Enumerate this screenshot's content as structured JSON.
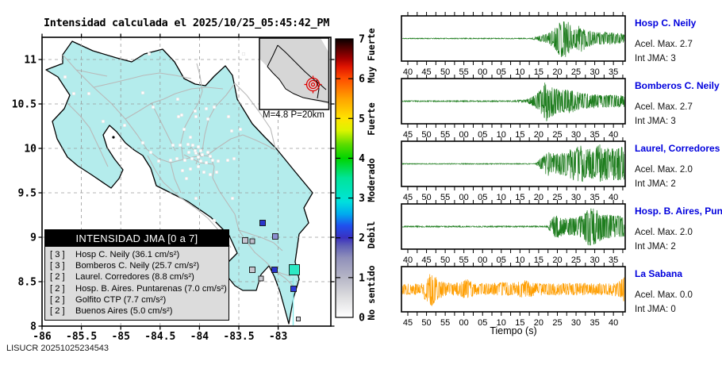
{
  "title": "Intensidad calculada el 2025/10/25_05:45:42_PM",
  "watermark": "LISUCR 20251025234543",
  "map": {
    "x_ticks": [
      "-86",
      "-85.5",
      "-85",
      "-84.5",
      "-84",
      "-83.5",
      "-83"
    ],
    "y_ticks": [
      "8",
      "8.5",
      "9",
      "9.5",
      "10",
      "10.5",
      "11"
    ],
    "inset_caption": "M=4.8 P=20km",
    "legend": {
      "title": "INTENSIDAD JMA [0 a 7]",
      "items": [
        {
          "bracket": "[ 3 ]",
          "label": "Hosp C. Neily (36.1 cm/s²)"
        },
        {
          "bracket": "[ 3 ]",
          "label": "Bomberos C. Neily (25.7 cm/s²)"
        },
        {
          "bracket": "[ 2 ]",
          "label": "Laurel. Corredores (8.8 cm/s²)"
        },
        {
          "bracket": "[ 2 ]",
          "label": "Hosp. B. Aires. Puntarenas (7.0 cm/s²)"
        },
        {
          "bracket": "[ 2 ]",
          "label": "Golfito CTP (7.7 cm/s²)"
        },
        {
          "bracket": "[ 2 ]",
          "label": "Buenos Aires (5.0 cm/s²)"
        }
      ]
    },
    "intensity_markers": [
      {
        "x": 331,
        "y": 281,
        "size": 7,
        "color": "#2a35cc"
      },
      {
        "x": 347,
        "y": 298,
        "size": 7,
        "color": "#8a8ed0"
      },
      {
        "x": 309,
        "y": 303,
        "size": 7,
        "color": "#c6c6d2"
      },
      {
        "x": 318,
        "y": 304,
        "size": 6,
        "color": "#bfbfcc"
      },
      {
        "x": 318,
        "y": 340,
        "size": 7,
        "color": "#c6c6ce"
      },
      {
        "x": 346,
        "y": 340,
        "size": 7,
        "color": "#2a35cc"
      },
      {
        "x": 329,
        "y": 351,
        "size": 6,
        "color": "#c8c8d0"
      },
      {
        "x": 371,
        "y": 340,
        "size": 13,
        "color": "#2de8c4"
      },
      {
        "x": 370,
        "y": 364,
        "size": 7,
        "color": "#2d3bd8"
      },
      {
        "x": 376,
        "y": 402,
        "size": 5,
        "color": "#d2d2d8"
      }
    ],
    "white_stations": [
      [
        82,
        97
      ],
      [
        93,
        118
      ],
      [
        112,
        118
      ],
      [
        130,
        153
      ],
      [
        157,
        158
      ],
      [
        180,
        117
      ],
      [
        188,
        68
      ],
      [
        307,
        68
      ],
      [
        224,
        125
      ],
      [
        225,
        147
      ],
      [
        247,
        147
      ],
      [
        260,
        137
      ],
      [
        288,
        147
      ],
      [
        303,
        163
      ],
      [
        292,
        165
      ],
      [
        193,
        135
      ],
      [
        229,
        145
      ],
      [
        232,
        163
      ],
      [
        240,
        173
      ],
      [
        218,
        183
      ],
      [
        227,
        183
      ],
      [
        237,
        182
      ],
      [
        243,
        183
      ],
      [
        250,
        185
      ],
      [
        253,
        190
      ],
      [
        238,
        192
      ],
      [
        247,
        193
      ],
      [
        255,
        195
      ],
      [
        262,
        192
      ],
      [
        265,
        197
      ],
      [
        250,
        198
      ],
      [
        242,
        200
      ],
      [
        233,
        202
      ],
      [
        223,
        200
      ],
      [
        215,
        202
      ],
      [
        253,
        203
      ],
      [
        260,
        205
      ],
      [
        268,
        202
      ],
      [
        275,
        203
      ],
      [
        287,
        202
      ],
      [
        295,
        200
      ],
      [
        250,
        210
      ],
      [
        240,
        213
      ],
      [
        230,
        215
      ],
      [
        257,
        217
      ],
      [
        265,
        220
      ],
      [
        273,
        217
      ],
      [
        200,
        203
      ],
      [
        190,
        192
      ],
      [
        180,
        180
      ],
      [
        293,
        250
      ],
      [
        247,
        250
      ],
      [
        270,
        278
      ],
      [
        262,
        150
      ],
      [
        270,
        135
      ],
      [
        246,
        140
      ],
      [
        235,
        225
      ],
      [
        246,
        190
      ]
    ]
  },
  "colorbar": {
    "numbers": [
      "0",
      "1",
      "2",
      "3",
      "4",
      "5",
      "6",
      "7"
    ],
    "labels": [
      {
        "text": "Muy Fuerte",
        "y": 70
      },
      {
        "text": "Fuerte",
        "y": 150
      },
      {
        "text": "Moderado",
        "y": 227
      },
      {
        "text": "Debil",
        "y": 296
      },
      {
        "text": "No sentido",
        "y": 369
      }
    ]
  },
  "waveforms": {
    "xlabel": "Tiempo (s)",
    "panels": [
      {
        "station": "Hosp C. Neily",
        "acel": "Acel. Max. 2.7",
        "jma": "Int JMA: 3",
        "color": "#1e7d1e",
        "seed": 11,
        "ticks": [
          "40",
          "45",
          "50",
          "55",
          "00",
          "05",
          "10",
          "15",
          "20",
          "25",
          "30",
          "35"
        ],
        "env": [
          [
            0,
            0.02
          ],
          [
            0.58,
            0.02
          ],
          [
            0.615,
            0.12
          ],
          [
            0.655,
            0.25
          ],
          [
            0.69,
            0.55
          ],
          [
            0.72,
            1.0
          ],
          [
            0.745,
            0.85
          ],
          [
            0.77,
            0.45
          ],
          [
            0.8,
            0.7
          ],
          [
            0.83,
            0.45
          ],
          [
            0.87,
            0.3
          ],
          [
            0.92,
            0.32
          ],
          [
            1,
            0.22
          ]
        ]
      },
      {
        "station": "Bomberos C. Neily",
        "acel": "Acel. Max. 2.7",
        "jma": "Int JMA: 3",
        "color": "#1e7d1e",
        "seed": 23,
        "ticks": [
          "45",
          "50",
          "55",
          "00",
          "05",
          "10",
          "15",
          "20",
          "25",
          "30",
          "35",
          "40"
        ],
        "env": [
          [
            0,
            0.025
          ],
          [
            0.5,
            0.03
          ],
          [
            0.56,
            0.08
          ],
          [
            0.6,
            0.3
          ],
          [
            0.625,
            0.6
          ],
          [
            0.645,
            1.0
          ],
          [
            0.67,
            0.8
          ],
          [
            0.7,
            0.55
          ],
          [
            0.75,
            0.6
          ],
          [
            0.79,
            0.45
          ],
          [
            0.84,
            0.35
          ],
          [
            0.9,
            0.3
          ],
          [
            1,
            0.3
          ]
        ]
      },
      {
        "station": "Laurel, Corredores",
        "acel": "Acel. Max. 2.0",
        "jma": "Int JMA: 2",
        "color": "#1e7d1e",
        "seed": 37,
        "ticks": [
          "45",
          "50",
          "55",
          "00",
          "05",
          "10",
          "15",
          "20",
          "25",
          "30",
          "35",
          "40"
        ],
        "env": [
          [
            0,
            0.02
          ],
          [
            0.6,
            0.02
          ],
          [
            0.625,
            0.3
          ],
          [
            0.655,
            0.6
          ],
          [
            0.69,
            0.5
          ],
          [
            0.73,
            0.55
          ],
          [
            0.77,
            0.8
          ],
          [
            0.81,
            0.9
          ],
          [
            0.85,
            0.7
          ],
          [
            0.89,
            0.95
          ],
          [
            0.93,
            0.75
          ],
          [
            1,
            0.85
          ]
        ]
      },
      {
        "station": "Hosp. B. Aires, Puntare",
        "acel": "Acel. Max. 2.0",
        "jma": "Int JMA: 2",
        "color": "#1e7d1e",
        "seed": 51,
        "ticks": [
          "40",
          "45",
          "50",
          "55",
          "00",
          "05",
          "10",
          "15",
          "20",
          "25",
          "30",
          "35"
        ],
        "env": [
          [
            0,
            0.03
          ],
          [
            0.655,
            0.03
          ],
          [
            0.675,
            0.5
          ],
          [
            0.7,
            0.55
          ],
          [
            0.73,
            0.4
          ],
          [
            0.77,
            0.45
          ],
          [
            0.8,
            0.5
          ],
          [
            0.84,
            1.0
          ],
          [
            0.87,
            0.85
          ],
          [
            0.91,
            0.6
          ],
          [
            0.95,
            0.55
          ],
          [
            1,
            0.5
          ]
        ]
      },
      {
        "station": "La Sabana",
        "acel": "Acel. Max. 0.0",
        "jma": "Int JMA: 0",
        "color": "#ff9e00",
        "seed": 77,
        "ticks": [
          "45",
          "50",
          "55",
          "00",
          "05",
          "10",
          "15",
          "20",
          "25",
          "30",
          "35",
          "40"
        ],
        "env": [
          [
            0,
            0.25
          ],
          [
            0.08,
            0.3
          ],
          [
            0.11,
            0.6
          ],
          [
            0.135,
            0.85
          ],
          [
            0.16,
            0.5
          ],
          [
            0.2,
            0.3
          ],
          [
            0.26,
            0.35
          ],
          [
            0.29,
            0.5
          ],
          [
            0.33,
            0.3
          ],
          [
            0.4,
            0.28
          ],
          [
            0.45,
            0.35
          ],
          [
            0.5,
            0.3
          ],
          [
            0.55,
            0.45
          ],
          [
            0.6,
            0.3
          ],
          [
            0.7,
            0.28
          ],
          [
            0.8,
            0.3
          ],
          [
            0.9,
            0.28
          ],
          [
            0.97,
            0.35
          ],
          [
            1,
            0.6
          ]
        ]
      }
    ]
  },
  "chart_data": {
    "type": "line",
    "title": "Intensidad calculada el 2025/10/25_05:45:42_PM",
    "event": {
      "magnitude": 4.8,
      "depth_km": 20,
      "datetime": "2025/10/25 05:45:42 PM"
    },
    "intensity_scale": {
      "min": 0,
      "max": 7,
      "bands": [
        {
          "label": "No sentido",
          "range": [
            0,
            1
          ]
        },
        {
          "label": "Debil",
          "range": [
            1,
            3
          ]
        },
        {
          "label": "Moderado",
          "range": [
            3,
            4
          ]
        },
        {
          "label": "Fuerte",
          "range": [
            4,
            6
          ]
        },
        {
          "label": "Muy Fuerte",
          "range": [
            6,
            7
          ]
        }
      ]
    },
    "map_axes": {
      "xlim": [
        -86,
        -82.3
      ],
      "ylim": [
        8,
        11.25
      ],
      "x_ticks": [
        -86,
        -85.5,
        -85,
        -84.5,
        -84,
        -83.5,
        -83
      ],
      "y_ticks": [
        8,
        8.5,
        9,
        9.5,
        10,
        10.5,
        11
      ],
      "grid": true
    },
    "station_intensities": [
      {
        "station": "Hosp C. Neily",
        "jma": 3,
        "accel_cm_s2": 36.1
      },
      {
        "station": "Bomberos C. Neily",
        "jma": 3,
        "accel_cm_s2": 25.7
      },
      {
        "station": "Laurel. Corredores",
        "jma": 2,
        "accel_cm_s2": 8.8
      },
      {
        "station": "Hosp. B. Aires. Puntarenas",
        "jma": 2,
        "accel_cm_s2": 7.0
      },
      {
        "station": "Golfito CTP",
        "jma": 2,
        "accel_cm_s2": 7.7
      },
      {
        "station": "Buenos Aires",
        "jma": 2,
        "accel_cm_s2": 5.0
      }
    ],
    "waveform_panels": [
      {
        "station": "Hosp C. Neily",
        "accel_max": 2.7,
        "int_jma": 3,
        "x_ticks_s": [
          "40",
          "45",
          "50",
          "55",
          "00",
          "05",
          "10",
          "15",
          "20",
          "25",
          "30",
          "35"
        ]
      },
      {
        "station": "Bomberos C. Neily",
        "accel_max": 2.7,
        "int_jma": 3,
        "x_ticks_s": [
          "45",
          "50",
          "55",
          "00",
          "05",
          "10",
          "15",
          "20",
          "25",
          "30",
          "35",
          "40"
        ]
      },
      {
        "station": "Laurel, Corredores",
        "accel_max": 2.0,
        "int_jma": 2,
        "x_ticks_s": [
          "45",
          "50",
          "55",
          "00",
          "05",
          "10",
          "15",
          "20",
          "25",
          "30",
          "35",
          "40"
        ]
      },
      {
        "station": "Hosp. B. Aires, Puntare",
        "accel_max": 2.0,
        "int_jma": 2,
        "x_ticks_s": [
          "40",
          "45",
          "50",
          "55",
          "00",
          "05",
          "10",
          "15",
          "20",
          "25",
          "30",
          "35"
        ]
      },
      {
        "station": "La Sabana",
        "accel_max": 0.0,
        "int_jma": 0,
        "x_ticks_s": [
          "45",
          "50",
          "55",
          "00",
          "05",
          "10",
          "15",
          "20",
          "25",
          "30",
          "35",
          "40"
        ]
      }
    ],
    "xlabel": "Tiempo (s)"
  }
}
